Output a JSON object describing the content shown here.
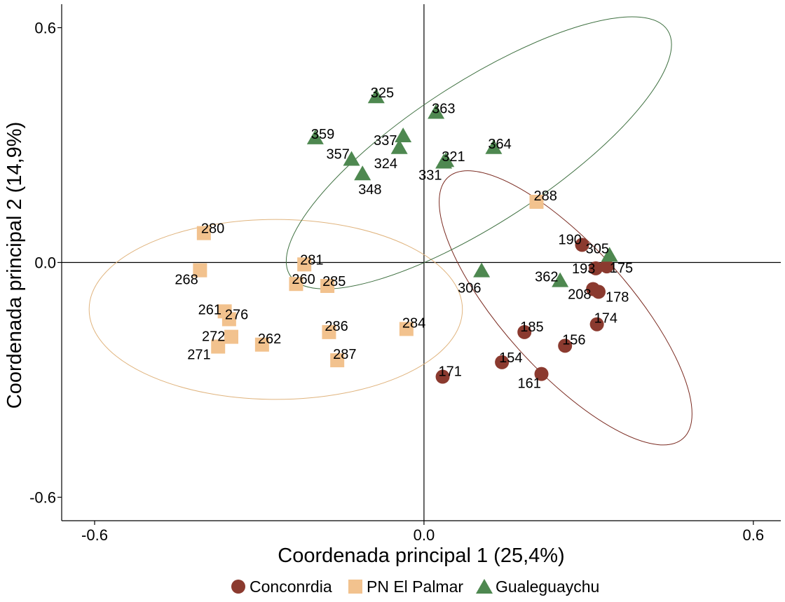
{
  "chart_data": {
    "type": "scatter",
    "xlabel": "Coordenada principal 1 (25,4%)",
    "ylabel": "Coordenada principal 2 (14,9%)",
    "xlim": [
      -0.66,
      0.65
    ],
    "ylim": [
      -0.66,
      0.66
    ],
    "x_ticks": [
      {
        "value": -0.6,
        "label": "-0.6"
      },
      {
        "value": 0.0,
        "label": "0.0"
      },
      {
        "value": 0.6,
        "label": "0.6"
      }
    ],
    "y_ticks": [
      {
        "value": 0.6,
        "label": "0.6"
      },
      {
        "value": 0.0,
        "label": "0.0"
      },
      {
        "value": -0.6,
        "label": "-0.6"
      }
    ],
    "grid": false,
    "reference_lines": {
      "x": 0,
      "y": 0
    },
    "legend_position": "bottom",
    "series": [
      {
        "name": "Conconrdia",
        "shape": "circle",
        "color": "#8B3A2F",
        "points": [
          {
            "x": 0.288,
            "y": 0.045,
            "label": "190"
          },
          {
            "x": 0.313,
            "y": -0.015,
            "label": "193"
          },
          {
            "x": 0.333,
            "y": -0.01,
            "label": "175"
          },
          {
            "x": 0.308,
            "y": -0.068,
            "label": "208"
          },
          {
            "x": 0.318,
            "y": -0.075,
            "label": "178"
          },
          {
            "x": 0.315,
            "y": -0.158,
            "label": "174"
          },
          {
            "x": 0.183,
            "y": -0.178,
            "label": "185"
          },
          {
            "x": 0.257,
            "y": -0.213,
            "label": "156"
          },
          {
            "x": 0.142,
            "y": -0.255,
            "label": "154"
          },
          {
            "x": 0.214,
            "y": -0.285,
            "label": "161"
          },
          {
            "x": 0.034,
            "y": -0.292,
            "label": "171"
          }
        ],
        "ellipse": {
          "center": [
            0.258,
            -0.116
          ],
          "semi_axes": [
            0.32,
            0.16
          ],
          "angle_deg": 48
        }
      },
      {
        "name": "PN El Palmar",
        "shape": "square",
        "color": "#F2C28E",
        "points": [
          {
            "x": 0.205,
            "y": 0.155,
            "label": "288"
          },
          {
            "x": -0.401,
            "y": 0.075,
            "label": "280"
          },
          {
            "x": -0.408,
            "y": -0.02,
            "label": "268"
          },
          {
            "x": -0.218,
            "y": -0.005,
            "label": "281"
          },
          {
            "x": -0.233,
            "y": -0.055,
            "label": "260"
          },
          {
            "x": -0.176,
            "y": -0.06,
            "label": "285"
          },
          {
            "x": -0.363,
            "y": -0.125,
            "label": "261"
          },
          {
            "x": -0.355,
            "y": -0.145,
            "label": "276"
          },
          {
            "x": -0.351,
            "y": -0.19,
            "label": "272"
          },
          {
            "x": -0.375,
            "y": -0.215,
            "label": "271"
          },
          {
            "x": -0.295,
            "y": -0.21,
            "label": "262"
          },
          {
            "x": -0.173,
            "y": -0.178,
            "label": "286"
          },
          {
            "x": -0.158,
            "y": -0.25,
            "label": "287"
          },
          {
            "x": -0.032,
            "y": -0.17,
            "label": "284"
          }
        ],
        "ellipse": {
          "center": [
            -0.27,
            -0.12
          ],
          "semi_axes": [
            0.34,
            0.23
          ],
          "angle_deg": 0
        }
      },
      {
        "name": "Gualeguaychu",
        "shape": "triangle",
        "color": "#4E8850",
        "points": [
          {
            "x": -0.087,
            "y": 0.425,
            "label": "325"
          },
          {
            "x": 0.022,
            "y": 0.385,
            "label": "363"
          },
          {
            "x": -0.198,
            "y": 0.32,
            "label": "359"
          },
          {
            "x": -0.038,
            "y": 0.325,
            "label": "337"
          },
          {
            "x": -0.045,
            "y": 0.295,
            "label": "324"
          },
          {
            "x": -0.132,
            "y": 0.265,
            "label": "357"
          },
          {
            "x": 0.04,
            "y": 0.262,
            "label": "321"
          },
          {
            "x": 0.036,
            "y": 0.258,
            "label": "331"
          },
          {
            "x": -0.112,
            "y": 0.228,
            "label": "348"
          },
          {
            "x": 0.127,
            "y": 0.295,
            "label": "364"
          },
          {
            "x": 0.105,
            "y": -0.02,
            "label": "306"
          },
          {
            "x": 0.248,
            "y": -0.045,
            "label": "362"
          },
          {
            "x": 0.338,
            "y": 0.02,
            "label": "305"
          }
        ],
        "ellipse": {
          "center": [
            0.1,
            0.28
          ],
          "semi_axes": [
            0.41,
            0.18
          ],
          "angle_deg": -33
        }
      }
    ]
  }
}
